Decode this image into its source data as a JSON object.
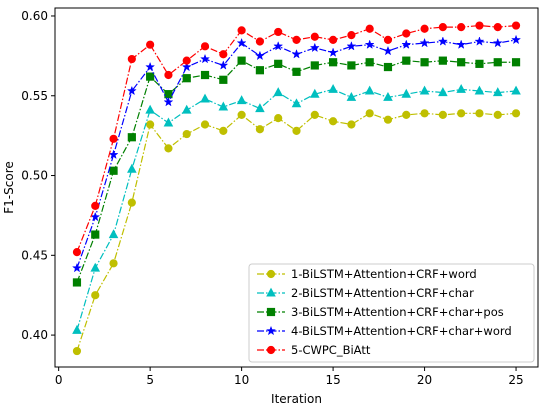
{
  "chart_data": {
    "type": "line",
    "title": "",
    "xlabel": "Iteration",
    "ylabel": "F1-Score",
    "xlim": [
      -0.2,
      26.2
    ],
    "ylim": [
      0.38,
      0.605
    ],
    "xticks": [
      0,
      5,
      10,
      15,
      20,
      25
    ],
    "xtick_labels": [
      "0",
      "5",
      "10",
      "15",
      "20",
      "25"
    ],
    "yticks": [
      0.4,
      0.45,
      0.5,
      0.55,
      0.6
    ],
    "ytick_labels": [
      "0.40",
      "0.45",
      "0.50",
      "0.55",
      "0.60"
    ],
    "grid": false,
    "legend_position": "lower-right",
    "x": [
      1,
      2,
      3,
      4,
      5,
      6,
      7,
      8,
      9,
      10,
      11,
      12,
      13,
      14,
      15,
      16,
      17,
      18,
      19,
      20,
      21,
      22,
      23,
      24,
      25
    ],
    "series": [
      {
        "name": "1-BiLSTM+Attention+CRF+word",
        "color": "#bfbf00",
        "marker": "circle",
        "dash": "dashdot",
        "values": [
          0.39,
          0.425,
          0.445,
          0.483,
          0.532,
          0.517,
          0.526,
          0.532,
          0.528,
          0.538,
          0.529,
          0.536,
          0.528,
          0.538,
          0.534,
          0.532,
          0.539,
          0.535,
          0.538,
          0.539,
          0.538,
          0.539,
          0.539,
          0.538,
          0.539
        ]
      },
      {
        "name": "2-BiLSTM+Attention+CRF+char",
        "color": "#00bfbf",
        "marker": "triangle",
        "dash": "dashdot",
        "values": [
          0.403,
          0.442,
          0.463,
          0.504,
          0.541,
          0.533,
          0.541,
          0.548,
          0.543,
          0.547,
          0.542,
          0.552,
          0.545,
          0.551,
          0.554,
          0.549,
          0.553,
          0.549,
          0.551,
          0.553,
          0.552,
          0.554,
          0.553,
          0.552,
          0.553
        ]
      },
      {
        "name": "3-BiLSTM+Attention+CRF+char+pos",
        "color": "#008000",
        "marker": "square",
        "dash": "dashdot",
        "values": [
          0.433,
          0.463,
          0.503,
          0.524,
          0.562,
          0.551,
          0.561,
          0.563,
          0.56,
          0.572,
          0.566,
          0.57,
          0.565,
          0.569,
          0.571,
          0.569,
          0.571,
          0.568,
          0.572,
          0.571,
          0.572,
          0.571,
          0.57,
          0.571,
          0.571
        ]
      },
      {
        "name": "4-BiLSTM+Attention+CRF+char+word",
        "color": "#0000ff",
        "marker": "star",
        "dash": "dashdot",
        "values": [
          0.442,
          0.474,
          0.513,
          0.553,
          0.568,
          0.546,
          0.568,
          0.573,
          0.569,
          0.583,
          0.575,
          0.581,
          0.576,
          0.58,
          0.577,
          0.581,
          0.582,
          0.578,
          0.582,
          0.583,
          0.584,
          0.582,
          0.584,
          0.583,
          0.585
        ]
      },
      {
        "name": "5-CWPC_BiAtt",
        "color": "#ff0000",
        "marker": "circle",
        "dash": "dashdot",
        "values": [
          0.452,
          0.481,
          0.523,
          0.573,
          0.582,
          0.563,
          0.572,
          0.581,
          0.576,
          0.591,
          0.584,
          0.59,
          0.585,
          0.587,
          0.585,
          0.588,
          0.592,
          0.585,
          0.589,
          0.592,
          0.593,
          0.593,
          0.594,
          0.593,
          0.594
        ]
      }
    ]
  }
}
